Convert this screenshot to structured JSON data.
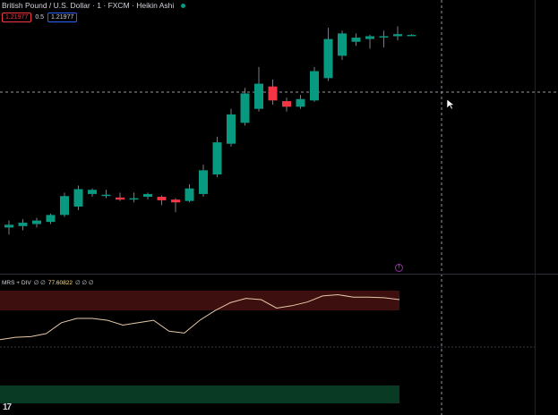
{
  "header": {
    "title": "British Pound / U.S. Dollar · 1 · FXCM · Heikin Ashi",
    "sell_price": "1.21977",
    "spread": "0.5",
    "buy_price": "1.21977"
  },
  "indicator": {
    "name": "MRS + DIV",
    "params": "∅ ∅",
    "value": "77.60822",
    "extras": "∅ ∅ ∅",
    "zone_colors": {
      "overbought": "#3d0f0f",
      "oversold": "#093a24"
    },
    "line_color": "#e6c9a8"
  },
  "colors": {
    "up": "#089981",
    "down": "#f23645",
    "crosshair": "#9598a1",
    "background": "#000000"
  },
  "badge_icon": "alert-circle-icon",
  "logo_text": "17",
  "chart_data": {
    "type": "candlestick",
    "style": "Heikin Ashi",
    "series": [
      {
        "name": "GBP/USD",
        "candles": [
          {
            "o": 1.215,
            "h": 1.216,
            "l": 1.214,
            "c": 1.2154
          },
          {
            "o": 1.2152,
            "h": 1.2162,
            "l": 1.2146,
            "c": 1.2157
          },
          {
            "o": 1.2155,
            "h": 1.2164,
            "l": 1.215,
            "c": 1.216
          },
          {
            "o": 1.2158,
            "h": 1.217,
            "l": 1.2155,
            "c": 1.2168
          },
          {
            "o": 1.2168,
            "h": 1.22,
            "l": 1.2165,
            "c": 1.2195
          },
          {
            "o": 1.218,
            "h": 1.221,
            "l": 1.2175,
            "c": 1.2205
          },
          {
            "o": 1.2198,
            "h": 1.2206,
            "l": 1.2194,
            "c": 1.2204
          },
          {
            "o": 1.2196,
            "h": 1.2204,
            "l": 1.2192,
            "c": 1.2197
          },
          {
            "o": 1.2193,
            "h": 1.22,
            "l": 1.2188,
            "c": 1.219
          },
          {
            "o": 1.219,
            "h": 1.22,
            "l": 1.2186,
            "c": 1.2192
          },
          {
            "o": 1.2194,
            "h": 1.22,
            "l": 1.219,
            "c": 1.2198
          },
          {
            "o": 1.2194,
            "h": 1.2196,
            "l": 1.2182,
            "c": 1.2189
          },
          {
            "o": 1.219,
            "h": 1.2192,
            "l": 1.2172,
            "c": 1.2186
          },
          {
            "o": 1.2188,
            "h": 1.2212,
            "l": 1.2186,
            "c": 1.2206
          },
          {
            "o": 1.2198,
            "h": 1.224,
            "l": 1.2194,
            "c": 1.2232
          },
          {
            "o": 1.2226,
            "h": 1.228,
            "l": 1.2222,
            "c": 1.2272
          },
          {
            "o": 1.227,
            "h": 1.232,
            "l": 1.2266,
            "c": 1.2312
          },
          {
            "o": 1.23,
            "h": 1.235,
            "l": 1.2296,
            "c": 1.2342
          },
          {
            "o": 1.232,
            "h": 1.238,
            "l": 1.2316,
            "c": 1.2356
          },
          {
            "o": 1.2352,
            "h": 1.2362,
            "l": 1.2326,
            "c": 1.2332
          },
          {
            "o": 1.2331,
            "h": 1.2336,
            "l": 1.2316,
            "c": 1.2323
          },
          {
            "o": 1.2323,
            "h": 1.234,
            "l": 1.232,
            "c": 1.2334
          },
          {
            "o": 1.2332,
            "h": 1.238,
            "l": 1.233,
            "c": 1.2374
          },
          {
            "o": 1.2364,
            "h": 1.2436,
            "l": 1.236,
            "c": 1.242
          },
          {
            "o": 1.2396,
            "h": 1.2432,
            "l": 1.239,
            "c": 1.2428
          },
          {
            "o": 1.2416,
            "h": 1.2428,
            "l": 1.241,
            "c": 1.2422
          },
          {
            "o": 1.242,
            "h": 1.2426,
            "l": 1.2406,
            "c": 1.2424
          },
          {
            "o": 1.2423,
            "h": 1.2432,
            "l": 1.2408,
            "c": 1.2424
          },
          {
            "o": 1.2424,
            "h": 1.2438,
            "l": 1.2418,
            "c": 1.2427
          },
          {
            "o": 1.2426,
            "h": 1.2427,
            "l": 1.2425,
            "c": 1.2426
          }
        ]
      }
    ],
    "crosshair_price": 1.2344,
    "indicator_line": [
      12,
      16,
      17,
      22,
      40,
      47,
      47,
      44,
      36,
      40,
      44,
      26,
      23,
      44,
      60,
      73,
      80,
      78,
      64,
      68,
      74,
      84,
      86,
      82,
      82,
      81,
      78
    ]
  }
}
